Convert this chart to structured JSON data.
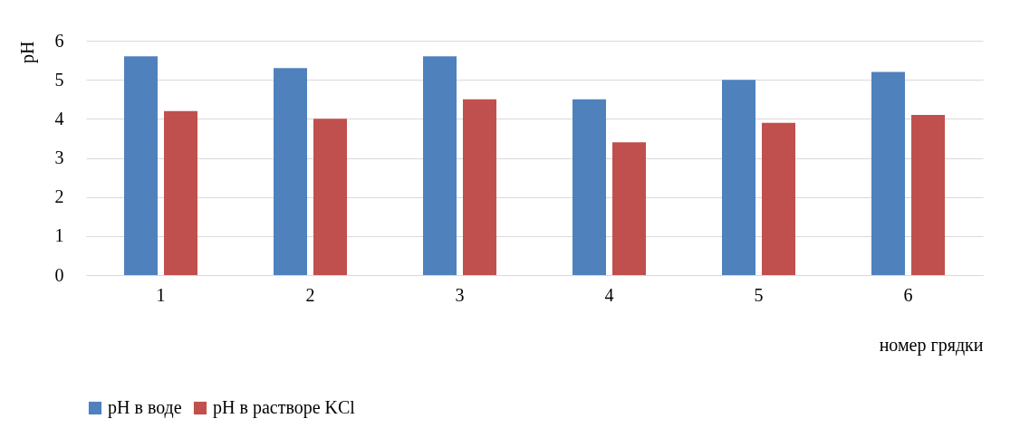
{
  "chart_data": {
    "type": "bar",
    "xlabel": "номер грядки",
    "ylabel": "pH",
    "categories": [
      "1",
      "2",
      "3",
      "4",
      "5",
      "6"
    ],
    "series": [
      {
        "name": "pH в воде",
        "color": "#4f81bd",
        "values": [
          5.6,
          5.3,
          5.6,
          4.5,
          5.0,
          5.2
        ]
      },
      {
        "name": "pH в растворе KCl",
        "color": "#c0504d",
        "values": [
          4.2,
          4.0,
          4.5,
          3.4,
          3.9,
          4.1
        ]
      }
    ],
    "ylim": [
      0,
      6
    ],
    "yticks": [
      0,
      1,
      2,
      3,
      4,
      5,
      6
    ],
    "grid": "y",
    "legend": "bottom"
  }
}
